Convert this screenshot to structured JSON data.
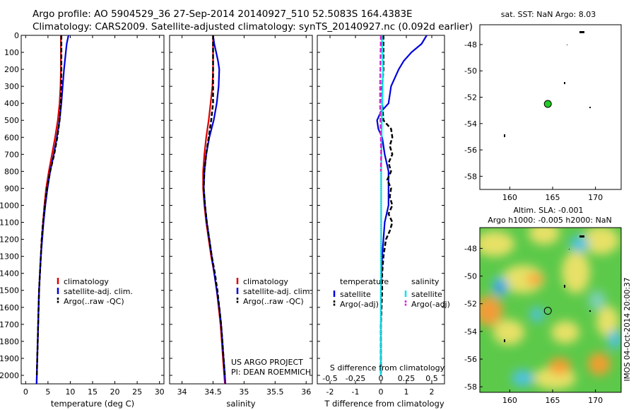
{
  "header": {
    "line1": "Argo profile: AO 5904529_36 27-Sep-2014 20140927_510 52.5083S 164.4383E",
    "line2": "Climatology: CARS2009. Satellite-adjusted climatology: synTS_20140927.nc (0.092d earlier)"
  },
  "credits": {
    "line1": "US ARGO PROJECT",
    "line2": "PI: DEAN ROEMMICH"
  },
  "imos_label": "IMOS 04-Oct-2014 20:00:37",
  "colors": {
    "climatology": "#dd0000",
    "satellite": "#0000dd",
    "argo": "#000000",
    "sal_satellite": "#00e5ee",
    "sal_argo": "#dd22dd"
  },
  "legend_profiles": [
    "climatology",
    "satellite-adj. clim.",
    "Argo(..raw -QC)"
  ],
  "legend_diff": {
    "temperature_header": "temperature",
    "salinity_header": "salinity",
    "t_items": [
      "satellite",
      "Argo(-adj)"
    ],
    "s_items": [
      "satellite",
      "Argo(-adj)"
    ]
  },
  "map_sst": {
    "title": "sat. SST: NaN Argo: 8.03"
  },
  "map_sla": {
    "title1": "Altim. SLA: -0.001",
    "title2": "Argo h1000: -0.005 h2000: NaN"
  },
  "chart_data": [
    {
      "type": "line",
      "panel": "temperature",
      "xlabel": "temperature (deg C)",
      "ylabel": "",
      "xlim": [
        -1,
        31
      ],
      "ylim": [
        2050,
        0
      ],
      "y_reversed": true,
      "xticks": [
        0,
        5,
        10,
        15,
        20,
        25,
        30
      ],
      "yticks": [
        0,
        100,
        200,
        300,
        400,
        500,
        600,
        700,
        800,
        900,
        1000,
        1100,
        1200,
        1300,
        1400,
        1500,
        1600,
        1700,
        1800,
        1900,
        2000
      ],
      "series": [
        {
          "name": "climatology",
          "color": "#dd0000",
          "pressure": [
            0,
            100,
            200,
            300,
            400,
            500,
            600,
            700,
            800,
            900,
            1000,
            1100,
            1200,
            1300,
            1400,
            1500,
            1600,
            1700,
            1800,
            1900,
            2000,
            2050
          ],
          "values": [
            7.9,
            7.9,
            7.9,
            7.8,
            7.6,
            7.2,
            6.6,
            5.9,
            5.2,
            4.6,
            4.2,
            3.9,
            3.6,
            3.4,
            3.2,
            3.0,
            2.9,
            2.8,
            2.7,
            2.6,
            2.5,
            2.45
          ]
        },
        {
          "name": "satellite-adj. clim.",
          "color": "#0000dd",
          "pressure": [
            0,
            50,
            100,
            200,
            300,
            400,
            500,
            600,
            700,
            800,
            900,
            1000,
            1100,
            1200,
            1300,
            1400,
            1500,
            1600,
            1700,
            1800,
            1900,
            2000,
            2050
          ],
          "values": [
            9.6,
            9.2,
            9.0,
            8.6,
            8.3,
            8.0,
            7.6,
            7.0,
            6.3,
            5.5,
            4.9,
            4.4,
            4.0,
            3.7,
            3.4,
            3.2,
            3.0,
            2.9,
            2.8,
            2.7,
            2.6,
            2.5,
            2.45
          ]
        },
        {
          "name": "Argo(..raw -QC)",
          "color": "#000000",
          "pressure": [
            0,
            100,
            200,
            300,
            400,
            500,
            600,
            700,
            800,
            900,
            1000,
            1100,
            1200,
            1300,
            1400,
            1500,
            1600,
            1700,
            1800,
            1900,
            2000
          ],
          "values": [
            8.0,
            8.0,
            8.0,
            8.0,
            7.9,
            7.6,
            7.1,
            6.4,
            5.5,
            4.8,
            4.3,
            3.9,
            3.6,
            3.4,
            3.2,
            3.0,
            2.9,
            2.8,
            2.7,
            2.6,
            2.5
          ]
        }
      ]
    },
    {
      "type": "line",
      "panel": "salinity",
      "xlabel": "salinity",
      "ylabel": "",
      "xlim": [
        33.8,
        36.1
      ],
      "ylim": [
        2050,
        0
      ],
      "y_reversed": true,
      "xticks": [
        34,
        34.5,
        35,
        35.5,
        36
      ],
      "series": [
        {
          "name": "climatology",
          "color": "#dd0000",
          "pressure": [
            0,
            100,
            200,
            300,
            400,
            500,
            600,
            700,
            800,
            900,
            1000,
            1100,
            1200,
            1300,
            1400,
            1500,
            1600,
            1700,
            1800,
            1900,
            2000,
            2050
          ],
          "values": [
            34.5,
            34.5,
            34.5,
            34.49,
            34.46,
            34.43,
            34.39,
            34.36,
            34.34,
            34.34,
            34.36,
            34.39,
            34.43,
            34.47,
            34.52,
            34.56,
            34.59,
            34.62,
            34.64,
            34.66,
            34.68,
            34.69
          ]
        },
        {
          "name": "satellite-adj. clim.",
          "color": "#0000dd",
          "pressure": [
            0,
            50,
            100,
            150,
            200,
            300,
            400,
            500,
            600,
            700,
            800,
            900,
            1000,
            1100,
            1200,
            1300,
            1400,
            1500,
            1600,
            1700,
            1800,
            1900,
            2000,
            2050
          ],
          "values": [
            34.5,
            34.52,
            34.55,
            34.58,
            34.6,
            34.59,
            34.56,
            34.51,
            34.44,
            34.39,
            34.36,
            34.35,
            34.37,
            34.4,
            34.44,
            34.48,
            34.52,
            34.56,
            34.6,
            34.63,
            34.65,
            34.67,
            34.69,
            34.7
          ]
        },
        {
          "name": "Argo(..raw -QC)",
          "color": "#000000",
          "pressure": [
            0,
            100,
            200,
            300,
            400,
            500,
            600,
            700,
            800,
            900,
            1000,
            1100,
            1200,
            1300,
            1400,
            1500,
            1600,
            1700,
            1800,
            1900,
            2000
          ],
          "values": [
            34.5,
            34.5,
            34.5,
            34.5,
            34.5,
            34.47,
            34.43,
            34.39,
            34.36,
            34.35,
            34.37,
            34.4,
            34.44,
            34.48,
            34.53,
            34.57,
            34.6,
            34.63,
            34.65,
            34.67,
            34.69
          ]
        }
      ]
    },
    {
      "type": "line",
      "panel": "difference",
      "xlabel": "T difference from climatology",
      "xlabel_top": "S difference from climatology",
      "xlim": [
        -2.5,
        2.5
      ],
      "ylim": [
        2050,
        0
      ],
      "y_reversed": true,
      "xticks": [
        -2,
        -1,
        0,
        1,
        2
      ],
      "xticks_top": [
        -0.5,
        -0.25,
        0,
        0.25,
        0.5
      ],
      "xticklabels_top": [
        "-0.5",
        "-0.25",
        "0",
        "0.25",
        "0.5"
      ],
      "series": [
        {
          "name": "temperature satellite",
          "color": "#0000dd",
          "pressure": [
            0,
            50,
            100,
            150,
            200,
            250,
            300,
            400,
            450,
            500,
            550,
            600,
            700,
            800,
            900,
            1000,
            1100,
            1200,
            1300,
            1500,
            1700,
            2000
          ],
          "values": [
            1.8,
            1.6,
            1.2,
            0.9,
            0.7,
            0.55,
            0.4,
            0.3,
            0.0,
            -0.15,
            -0.1,
            0.05,
            0.15,
            0.3,
            0.3,
            0.3,
            0.15,
            0.1,
            0.05,
            0.0,
            0.0,
            0.0
          ]
        },
        {
          "name": "temperature Argo(-adj)",
          "color": "#000000",
          "pressure": [
            0,
            100,
            200,
            300,
            400,
            500,
            550,
            600,
            650,
            700,
            750,
            800,
            850,
            900,
            950,
            1000,
            1050,
            1100,
            1150,
            1200,
            1300,
            1400,
            1500,
            1700,
            2000
          ],
          "values": [
            0.1,
            0.1,
            0.1,
            0.05,
            0.05,
            0.1,
            0.4,
            0.45,
            0.35,
            0.45,
            0.3,
            0.4,
            0.25,
            0.4,
            0.35,
            0.45,
            0.3,
            0.45,
            0.35,
            0.2,
            0.1,
            0.05,
            0.05,
            0.0,
            0.0
          ]
        },
        {
          "name": "salinity satellite",
          "color": "#00e5ee",
          "pressure": [
            0,
            100,
            200,
            300,
            400,
            500,
            600,
            700,
            800,
            900,
            1000,
            1200,
            1500,
            2000
          ],
          "values": [
            0.04,
            0.06,
            0.08,
            0.07,
            0.05,
            0.04,
            0.03,
            0.02,
            0.01,
            0.01,
            0.01,
            0.01,
            0.0,
            0.0
          ]
        },
        {
          "name": "salinity Argo(-adj)",
          "color": "#dd22dd",
          "pressure": [
            0,
            100,
            200,
            300,
            400,
            500,
            600,
            700,
            800
          ],
          "values": [
            0.0,
            -0.01,
            -0.02,
            -0.03,
            -0.03,
            -0.02,
            0.0,
            0.01,
            0.0
          ]
        }
      ]
    },
    {
      "type": "scatter",
      "panel": "map_sst",
      "xlim": [
        156.5,
        173
      ],
      "ylim": [
        -59,
        -46.5
      ],
      "xticks": [
        160,
        165,
        170
      ],
      "yticks": [
        -48,
        -50,
        -52,
        -54,
        -56,
        -58
      ],
      "float_position": {
        "lon": 164.4383,
        "lat": -52.5083
      }
    },
    {
      "type": "heatmap",
      "panel": "map_sla",
      "xlim": [
        156.5,
        173
      ],
      "ylim": [
        -58.4,
        -46.5
      ],
      "xticks": [
        160,
        165,
        170
      ],
      "yticks": [
        -48,
        -50,
        -52,
        -54,
        -56,
        -58
      ],
      "float_position": {
        "lon": 164.4383,
        "lat": -52.5083
      }
    }
  ]
}
